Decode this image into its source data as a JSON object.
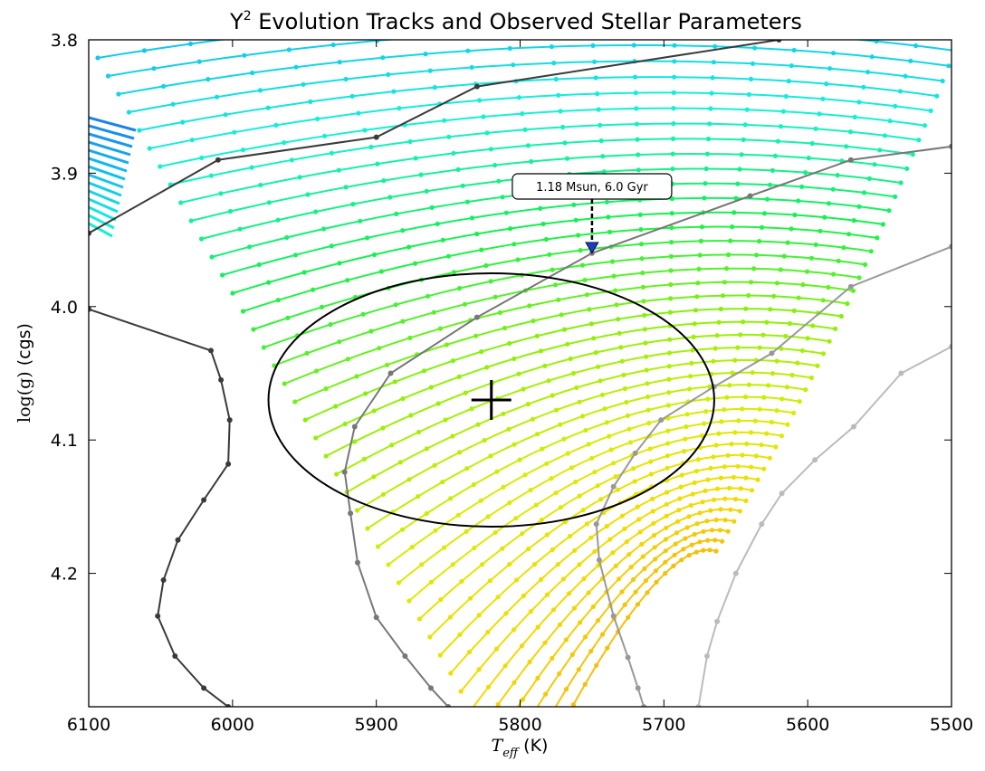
{
  "chart_data": {
    "type": "scatter",
    "title_main": "Y",
    "title_sup": "2",
    "title_rest": "  Evolution Tracks and Observed Stellar Parameters",
    "xlabel_main": "T",
    "xlabel_sub": "eff",
    "xlabel_unit": " (K)",
    "ylabel_main": "log(g)",
    "ylabel_unit": " (cgs)",
    "xlim": [
      6100,
      5500
    ],
    "ylim": [
      3.8,
      4.3
    ],
    "x_ticks": [
      6100,
      6000,
      5900,
      5800,
      5700,
      5600,
      5500
    ],
    "y_ticks": [
      3.8,
      3.9,
      4.0,
      4.1,
      4.2
    ],
    "y_tick_labels": [
      "3.8",
      "3.9",
      "4.0",
      "4.1",
      "4.2"
    ],
    "grid": false,
    "observed_point": {
      "teff": 5820,
      "logg": 4.07,
      "teff_err": 155,
      "logg_err": 0.095
    },
    "annotation": {
      "text": "1.18 Msun, 6.0 Gyr",
      "teff": 5750,
      "logg": 3.96
    },
    "track_color_scale": [
      "#1e6fe6",
      "#13b8f0",
      "#17f0da",
      "#16f050",
      "#8ef00a",
      "#d8ec06",
      "#f2dc05",
      "#f3b50d"
    ],
    "isochrones": [
      {
        "color": "#3a3a3a",
        "points": [
          [
            6100,
            3.945
          ],
          [
            6010,
            3.89
          ],
          [
            5900,
            3.873
          ],
          [
            5830,
            3.835
          ],
          [
            5620,
            3.8
          ]
        ]
      },
      {
        "color": "#3a3a3a",
        "points": [
          [
            6100,
            4.002
          ],
          [
            6015,
            4.033
          ],
          [
            6008,
            4.055
          ],
          [
            6002,
            4.085
          ],
          [
            6003,
            4.118
          ],
          [
            6020,
            4.145
          ],
          [
            6038,
            4.175
          ],
          [
            6048,
            4.205
          ],
          [
            6052,
            4.232
          ],
          [
            6040,
            4.262
          ],
          [
            6020,
            4.286
          ],
          [
            6003,
            4.3
          ]
        ]
      },
      {
        "color": "#777777",
        "points": [
          [
            5500,
            3.88
          ],
          [
            5570,
            3.89
          ],
          [
            5640,
            3.917
          ],
          [
            5750,
            3.96
          ],
          [
            5830,
            4.008
          ],
          [
            5890,
            4.05
          ],
          [
            5915,
            4.09
          ],
          [
            5922,
            4.124
          ],
          [
            5918,
            4.155
          ],
          [
            5913,
            4.192
          ],
          [
            5900,
            4.233
          ],
          [
            5880,
            4.262
          ],
          [
            5862,
            4.286
          ],
          [
            5850,
            4.3
          ]
        ]
      },
      {
        "color": "#999999",
        "points": [
          [
            5500,
            3.955
          ],
          [
            5570,
            3.985
          ],
          [
            5625,
            4.035
          ],
          [
            5665,
            4.06
          ],
          [
            5702,
            4.085
          ],
          [
            5720,
            4.11
          ],
          [
            5735,
            4.135
          ],
          [
            5747,
            4.163
          ],
          [
            5745,
            4.19
          ],
          [
            5735,
            4.232
          ],
          [
            5725,
            4.263
          ],
          [
            5718,
            4.286
          ],
          [
            5714,
            4.3
          ]
        ]
      },
      {
        "color": "#bbbbbb",
        "points": [
          [
            5500,
            4.03
          ],
          [
            5535,
            4.05
          ],
          [
            5568,
            4.09
          ],
          [
            5595,
            4.115
          ],
          [
            5618,
            4.14
          ],
          [
            5632,
            4.163
          ],
          [
            5650,
            4.2
          ],
          [
            5663,
            4.236
          ],
          [
            5670,
            4.262
          ],
          [
            5676,
            4.3
          ]
        ]
      }
    ],
    "error_ellipse": {
      "center": [
        5820,
        4.07
      ],
      "teff_radius": 155,
      "logg_radius": 0.095
    }
  }
}
